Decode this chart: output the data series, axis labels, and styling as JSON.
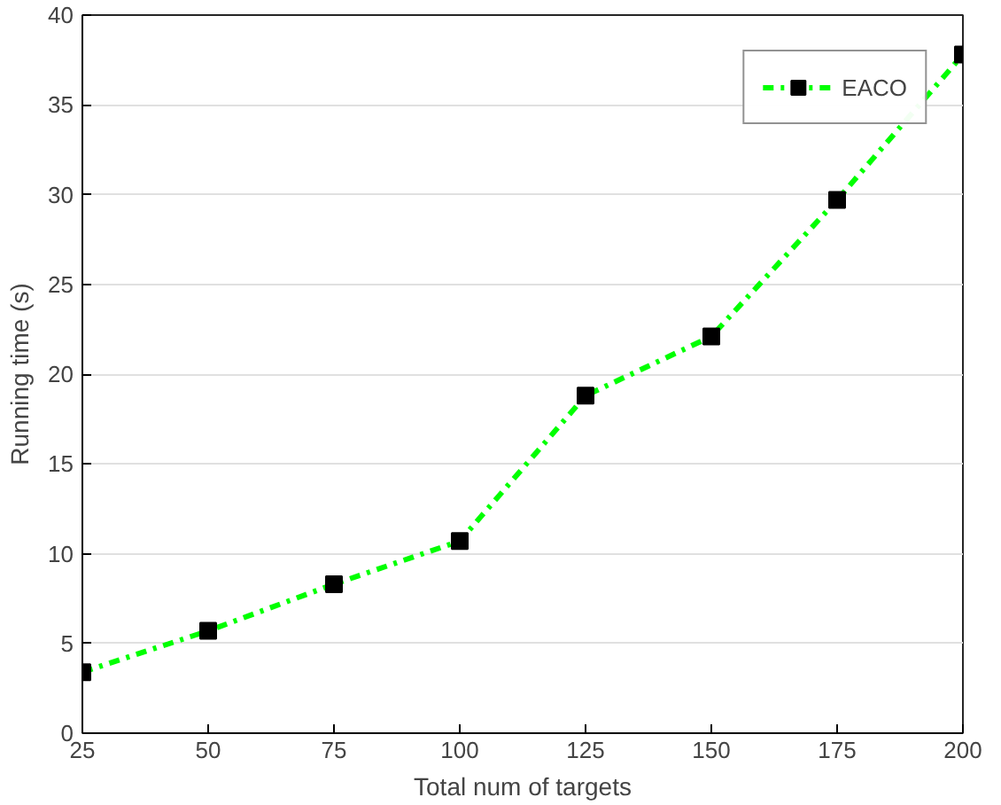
{
  "chart_data": {
    "type": "line",
    "xlabel": "Total num of targets",
    "ylabel": "Running time (s)",
    "x": [
      25,
      50,
      75,
      100,
      125,
      150,
      175,
      200
    ],
    "series": [
      {
        "name": "EACO",
        "color": "#00ff00",
        "values": [
          3.4,
          5.7,
          8.3,
          10.7,
          18.8,
          22.1,
          29.7,
          37.8
        ]
      }
    ],
    "xlim": [
      25,
      200
    ],
    "xticks": [
      25,
      50,
      75,
      100,
      125,
      150,
      175,
      200
    ],
    "ylim": [
      0,
      40
    ],
    "yticks": [
      0,
      5,
      10,
      15,
      20,
      25,
      30,
      35,
      40
    ],
    "grid": "y",
    "legend": "top right",
    "marker": "square",
    "line_style": "dashed"
  }
}
